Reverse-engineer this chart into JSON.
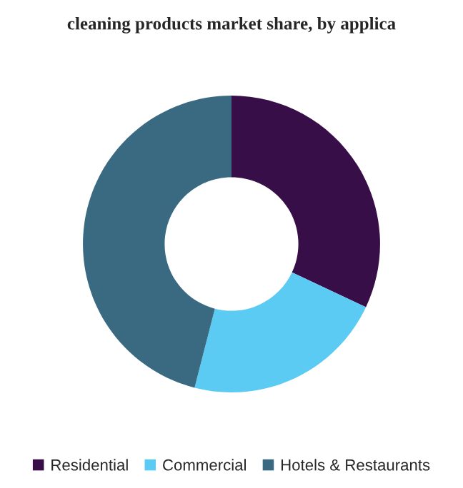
{
  "chart_data": {
    "type": "donut",
    "title": "cleaning products market share, by applica",
    "categories": [
      "Residential",
      "Commercial",
      "Hotels & Restaurants"
    ],
    "values": [
      32,
      22,
      46
    ],
    "colors": [
      "#370e48",
      "#5ccbf3",
      "#3a6a81"
    ],
    "legend": "bottom"
  }
}
